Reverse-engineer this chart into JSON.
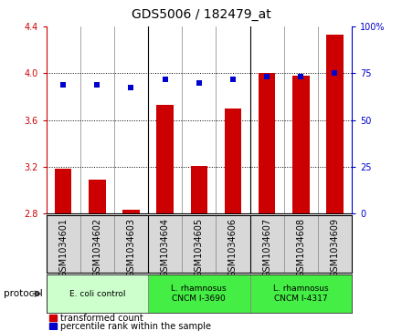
{
  "title": "GDS5006 / 182479_at",
  "samples": [
    "GSM1034601",
    "GSM1034602",
    "GSM1034603",
    "GSM1034604",
    "GSM1034605",
    "GSM1034606",
    "GSM1034607",
    "GSM1034608",
    "GSM1034609"
  ],
  "red_bars": [
    3.18,
    3.09,
    2.83,
    3.73,
    3.21,
    3.7,
    4.0,
    3.98,
    4.33
  ],
  "blue_dots": [
    3.9,
    3.9,
    3.88,
    3.95,
    3.92,
    3.95,
    3.97,
    3.97,
    4.0
  ],
  "bar_bottom": 2.8,
  "ylim_left": [
    2.8,
    4.4
  ],
  "ylim_right": [
    0,
    100
  ],
  "yticks_left": [
    2.8,
    3.2,
    3.6,
    4.0,
    4.4
  ],
  "yticks_right": [
    0,
    25,
    50,
    75,
    100
  ],
  "ytick_labels_right": [
    "0",
    "25",
    "50",
    "75",
    "100%"
  ],
  "bar_color": "#cc0000",
  "dot_color": "#0000cc",
  "protocol_groups": [
    {
      "label": "E. coli control",
      "start": 0,
      "end": 3,
      "color": "#ccffcc"
    },
    {
      "label": "L. rhamnosus\nCNCM I-3690",
      "start": 3,
      "end": 6,
      "color": "#44ee44"
    },
    {
      "label": "L. rhamnosus\nCNCM I-4317",
      "start": 6,
      "end": 9,
      "color": "#44ee44"
    }
  ],
  "legend_items": [
    {
      "label": "transformed count",
      "color": "#cc0000"
    },
    {
      "label": "percentile rank within the sample",
      "color": "#0000cc"
    }
  ],
  "protocol_label": "protocol",
  "bar_width": 0.5,
  "tick_label_fontsize": 7,
  "title_fontsize": 10,
  "axis_label_color_left": "#cc0000",
  "axis_label_color_right": "#0000cc",
  "sample_box_color": "#d8d8d8",
  "grid_yticks": [
    3.2,
    3.6,
    4.0
  ]
}
